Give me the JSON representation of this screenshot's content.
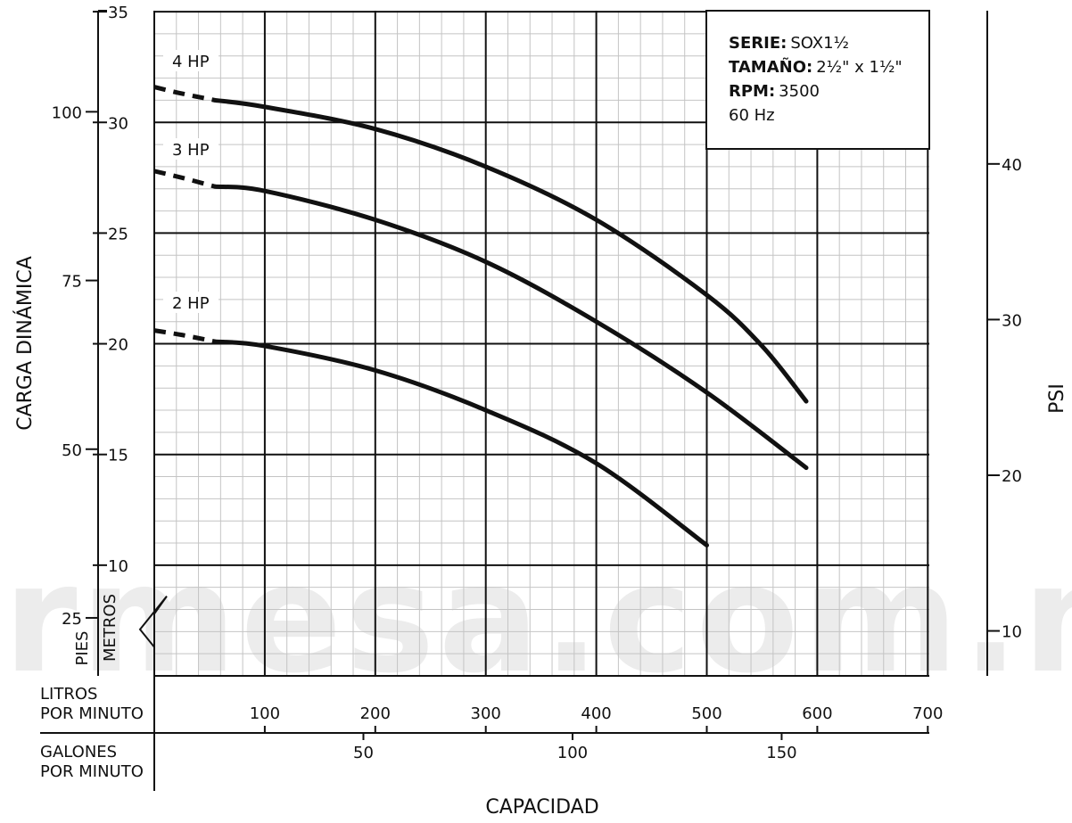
{
  "chart_data": {
    "type": "line",
    "title": "",
    "info_box": [
      {
        "key": "SERIE:",
        "value": "SOX1½"
      },
      {
        "key": "TAMAÑO:",
        "value": "2½\" x 1½\""
      },
      {
        "key": "RPM:",
        "value": "3500"
      },
      {
        "key": "",
        "value": "60 Hz"
      }
    ],
    "xlabel": "CAPACIDAD",
    "ylabel": "CARGA DINÁMICA",
    "y2label": "PSI",
    "x_axis_litros": {
      "label_lines": [
        "LITROS",
        "POR MINUTO"
      ],
      "ticks": [
        "100",
        "200",
        "300",
        "400",
        "500",
        "600",
        "700"
      ],
      "range": [
        0,
        700
      ]
    },
    "x_axis_galones": {
      "label_lines": [
        "GALONES",
        "POR MINUTO"
      ],
      "ticks": [
        "50",
        "100",
        "150"
      ]
    },
    "y_axis_metros": {
      "unit_label": "METROS",
      "ticks": [
        "10",
        "15",
        "20",
        "25",
        "30",
        "35"
      ],
      "range": [
        5,
        35
      ]
    },
    "y_axis_pies": {
      "unit_label": "PIES",
      "ticks": [
        "25",
        "50",
        "75",
        "100"
      ]
    },
    "y_axis_psi": {
      "ticks": [
        "10",
        "20",
        "30",
        "40"
      ]
    },
    "grid": true,
    "series": [
      {
        "name": "4 HP",
        "dashed": {
          "x": [
            0,
            25,
            55
          ],
          "y": [
            31.6,
            31.3,
            31.0
          ]
        },
        "x": [
          55,
          100,
          200,
          300,
          400,
          500,
          550,
          590
        ],
        "y": [
          31.0,
          30.7,
          29.7,
          28.0,
          25.6,
          22.2,
          19.9,
          17.4
        ]
      },
      {
        "name": "3 HP",
        "dashed": {
          "x": [
            0,
            25,
            55
          ],
          "y": [
            27.8,
            27.5,
            27.1
          ]
        },
        "x": [
          55,
          100,
          200,
          300,
          400,
          500,
          590
        ],
        "y": [
          27.1,
          26.9,
          25.6,
          23.7,
          21.0,
          17.8,
          14.4
        ]
      },
      {
        "name": "2 HP",
        "dashed": {
          "x": [
            0,
            25,
            55
          ],
          "y": [
            20.6,
            20.4,
            20.1
          ]
        },
        "x": [
          55,
          100,
          200,
          300,
          400,
          500
        ],
        "y": [
          20.1,
          19.9,
          18.8,
          17.0,
          14.6,
          10.9
        ]
      }
    ],
    "watermark": "parmesa.com.mx"
  }
}
